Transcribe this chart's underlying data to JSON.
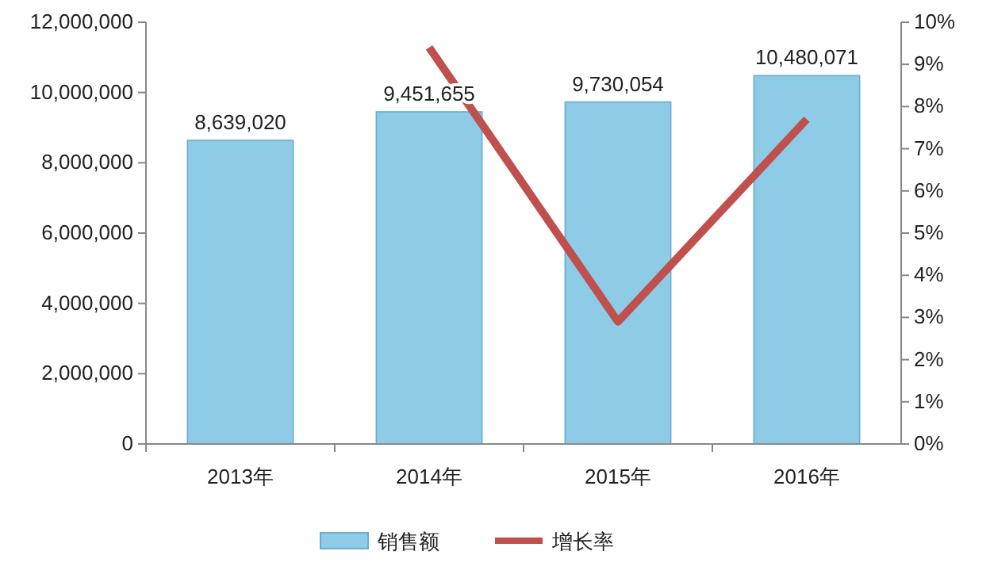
{
  "chart_data": {
    "type": "bar",
    "categories": [
      "2013年",
      "2014年",
      "2015年",
      "2016年"
    ],
    "series": [
      {
        "name": "销售额",
        "color": "#8dcbe6",
        "values": [
          8639020,
          9451655,
          9730054,
          10480071
        ],
        "value_labels": [
          "8,639,020",
          "9,451,655",
          "9,730,054",
          "10,480,071"
        ]
      },
      {
        "name": "增长率",
        "type": "line",
        "axis": "y2",
        "color": "#c0504d",
        "values": [
          null,
          9.4,
          2.9,
          7.7
        ]
      }
    ],
    "ylim": [
      0,
      12000000
    ],
    "yticks": [
      {
        "value": 0,
        "label": "0"
      },
      {
        "value": 2000000,
        "label": "2,000,000"
      },
      {
        "value": 4000000,
        "label": "4,000,000"
      },
      {
        "value": 6000000,
        "label": "6,000,000"
      },
      {
        "value": 8000000,
        "label": "8,000,000"
      },
      {
        "value": 10000000,
        "label": "10,000,000"
      },
      {
        "value": 12000000,
        "label": "12,000,000"
      }
    ],
    "y2lim": [
      0,
      10
    ],
    "y2ticks": [
      {
        "value": 0,
        "label": "0%"
      },
      {
        "value": 1,
        "label": "1%"
      },
      {
        "value": 2,
        "label": "2%"
      },
      {
        "value": 3,
        "label": "3%"
      },
      {
        "value": 4,
        "label": "4%"
      },
      {
        "value": 5,
        "label": "5%"
      },
      {
        "value": 6,
        "label": "6%"
      },
      {
        "value": 7,
        "label": "7%"
      },
      {
        "value": 8,
        "label": "8%"
      },
      {
        "value": 9,
        "label": "9%"
      },
      {
        "value": 10,
        "label": "10%"
      }
    ],
    "legend": "bottom",
    "grid": false
  }
}
